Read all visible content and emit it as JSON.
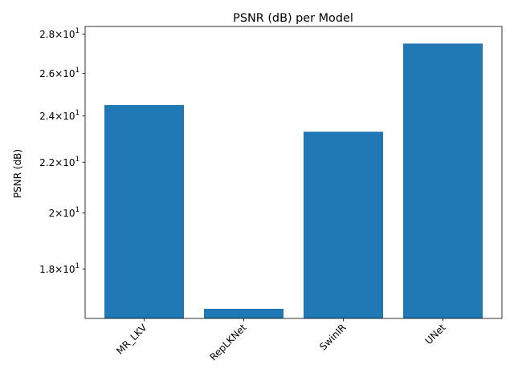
{
  "chart_data": {
    "type": "bar",
    "title": "PSNR (dB) per Model",
    "xlabel": "",
    "ylabel": "PSNR (dB)",
    "yscale": "log",
    "ylim": [
      16.4,
      28.4
    ],
    "categories": [
      "MR_LKV",
      "RepLKNet",
      "SwinIR",
      "UNet"
    ],
    "values": [
      24.5,
      16.7,
      23.3,
      27.5
    ],
    "color": "#1f77b4",
    "yticks": [
      {
        "value": 18,
        "base": "1.8",
        "exp": "1"
      },
      {
        "value": 20,
        "base": "2",
        "exp": "1"
      },
      {
        "value": 22,
        "base": "2.2",
        "exp": "1"
      },
      {
        "value": 24,
        "base": "2.4",
        "exp": "1"
      },
      {
        "value": 26,
        "base": "2.6",
        "exp": "1"
      },
      {
        "value": 28,
        "base": "2.8",
        "exp": "1"
      }
    ],
    "ytick_prefix_times": "×10",
    "grid": false,
    "legend": "none"
  }
}
